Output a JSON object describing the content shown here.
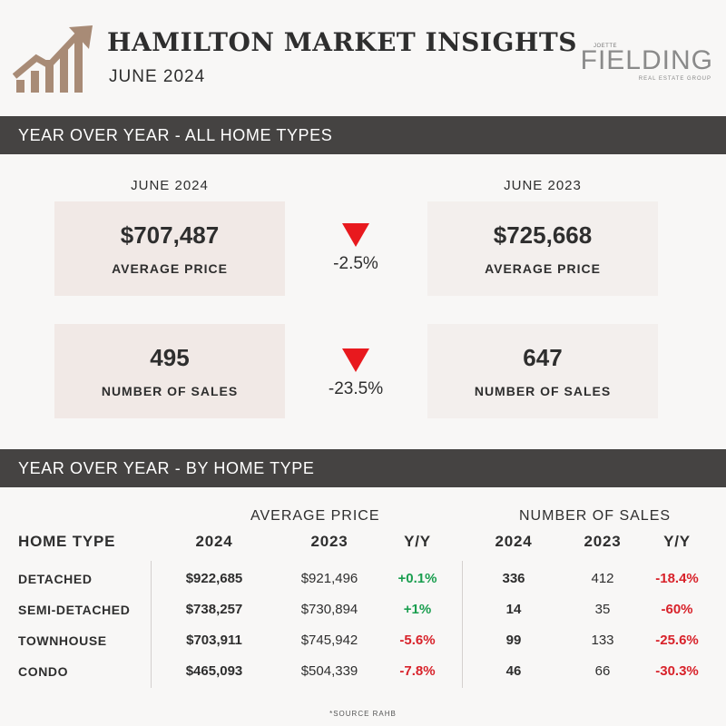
{
  "header": {
    "title": "HAMILTON MARKET INSIGHTS",
    "subtitle": "JUNE 2024",
    "logo_icon": "growth-chart-icon",
    "brand": {
      "small": "JOETTE",
      "main": "FIELDING",
      "sub": "REAL ESTATE GROUP"
    }
  },
  "colors": {
    "bar": "#454342",
    "card": "#f1e9e6",
    "down": "#e8191e",
    "positive": "#1a9e4f",
    "negative": "#d8222a",
    "accent": "#a88b76"
  },
  "section1": {
    "title": "YEAR OVER YEAR - ALL HOME TYPES",
    "current_label": "JUNE 2024",
    "previous_label": "JUNE 2023",
    "metrics": [
      {
        "current_value": "$707,487",
        "previous_value": "$725,668",
        "label": "AVERAGE PRICE",
        "change": "-2.5%",
        "direction": "down"
      },
      {
        "current_value": "495",
        "previous_value": "647",
        "label": "NUMBER OF SALES",
        "change": "-23.5%",
        "direction": "down"
      }
    ]
  },
  "section2": {
    "title": "YEAR OVER YEAR - BY HOME TYPE",
    "group_price": "AVERAGE PRICE",
    "group_sales": "NUMBER OF SALES",
    "columns": [
      "HOME TYPE",
      "2024",
      "2023",
      "Y/Y",
      "2024",
      "2023",
      "Y/Y"
    ],
    "rows": [
      {
        "type": "DETACHED",
        "price_2024": "$922,685",
        "price_2023": "$921,496",
        "price_yy": "+0.1%",
        "sales_2024": "336",
        "sales_2023": "412",
        "sales_yy": "-18.4%"
      },
      {
        "type": "SEMI-DETACHED",
        "price_2024": "$738,257",
        "price_2023": "$730,894",
        "price_yy": "+1%",
        "sales_2024": "14",
        "sales_2023": "35",
        "sales_yy": "-60%"
      },
      {
        "type": "TOWNHOUSE",
        "price_2024": "$703,911",
        "price_2023": "$745,942",
        "price_yy": "-5.6%",
        "sales_2024": "99",
        "sales_2023": "133",
        "sales_yy": "-25.6%"
      },
      {
        "type": "CONDO",
        "price_2024": "$465,093",
        "price_2023": "$504,339",
        "price_yy": "-7.8%",
        "sales_2024": "46",
        "sales_2023": "66",
        "sales_yy": "-30.3%"
      }
    ]
  },
  "footer": {
    "source": "*SOURCE RAHB"
  }
}
